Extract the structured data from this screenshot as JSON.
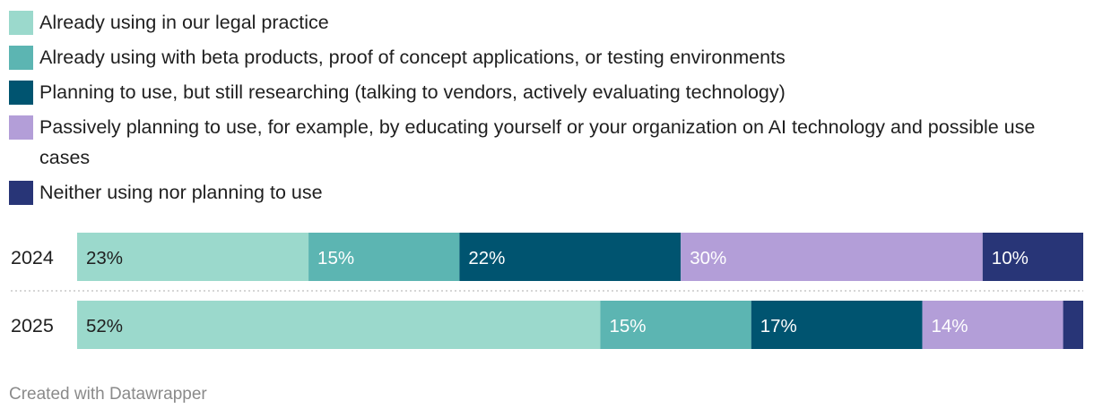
{
  "legend": [
    {
      "label": "Already using in our legal practice",
      "color": "#9bd9cc"
    },
    {
      "label": "Already using with beta products, proof of concept applications, or testing environments",
      "color": "#5cb5b2"
    },
    {
      "label": "Planning to use, but still researching (talking to vendors, actively evaluating technology)",
      "color": "#005470"
    },
    {
      "label": "Passively planning to use, for example, by educating yourself or your organization on AI technology and possible use cases",
      "color": "#b39ed8"
    },
    {
      "label": "Neither using nor planning to use",
      "color": "#283577"
    }
  ],
  "chart_data": {
    "type": "bar",
    "orientation": "horizontal",
    "stacked": true,
    "categories": [
      "2024",
      "2025"
    ],
    "series": [
      {
        "name": "Already using in our legal practice",
        "values": [
          23,
          52
        ],
        "labels": [
          "23%",
          "52%"
        ]
      },
      {
        "name": "Already using with beta products, proof of concept applications, or testing environments",
        "values": [
          15,
          15
        ],
        "labels": [
          "15%",
          "15%"
        ]
      },
      {
        "name": "Planning to use, but still researching (talking to vendors, actively evaluating technology)",
        "values": [
          22,
          17
        ],
        "labels": [
          "22%",
          "17%"
        ]
      },
      {
        "name": "Passively planning to use, for example, by educating yourself or your organization on AI technology and possible use cases",
        "values": [
          30,
          14
        ],
        "labels": [
          "30%",
          "14%"
        ]
      },
      {
        "name": "Neither using nor planning to use",
        "values": [
          10,
          2
        ],
        "labels": [
          "10%",
          ""
        ]
      }
    ],
    "label_colors": [
      "#1f1f1f",
      "#ffffff",
      "#ffffff",
      "#ffffff",
      "#ffffff"
    ],
    "xlim": [
      0,
      100
    ],
    "legend_position": "top"
  },
  "footer": {
    "text": "Created with Datawrapper"
  }
}
